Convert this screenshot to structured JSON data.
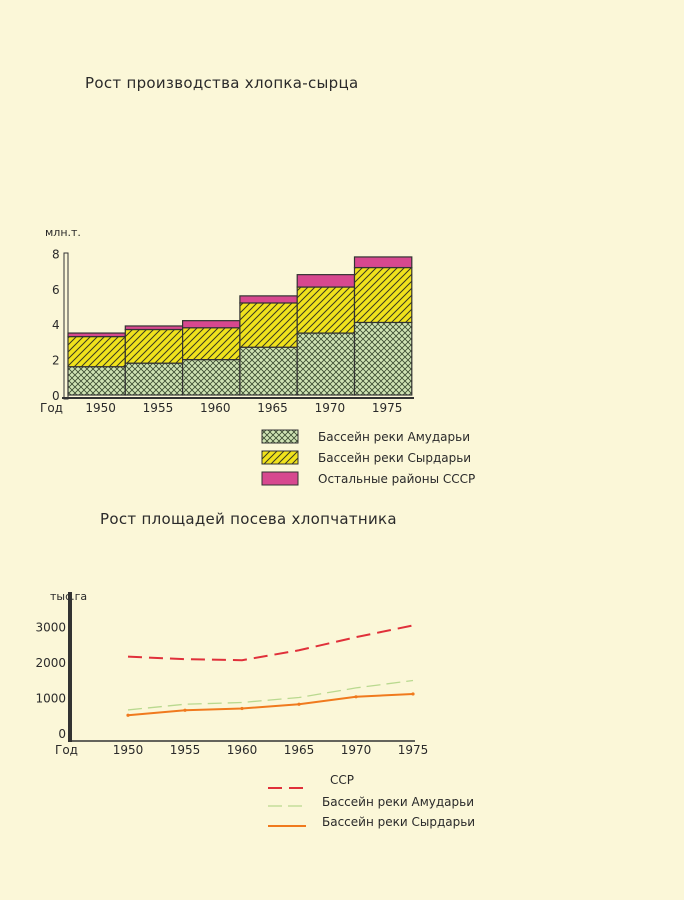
{
  "chart_data": [
    {
      "type": "bar",
      "stacked": true,
      "title": "Рост производства хлопка-сырца",
      "ylabel": "млн.т.",
      "xlabel": "Год",
      "ylim": [
        0,
        8
      ],
      "yticks": [
        0,
        2,
        4,
        6,
        8
      ],
      "categories": [
        "1950",
        "1955",
        "1960",
        "1965",
        "1970",
        "1975"
      ],
      "series": [
        {
          "name": "Бассейн реки Амударьи",
          "color": "#cfe3b4",
          "pattern": "crosshatch",
          "values": [
            1.6,
            1.8,
            2.0,
            2.7,
            3.5,
            4.1
          ]
        },
        {
          "name": "Бассейн реки Сырдарьи",
          "color": "#f0e21c",
          "pattern": "diagonal",
          "values": [
            1.7,
            1.9,
            1.8,
            2.5,
            2.6,
            3.1
          ]
        },
        {
          "name": "Остальные районы СССР",
          "color": "#d7488f",
          "pattern": "solid",
          "values": [
            0.2,
            0.2,
            0.4,
            0.4,
            0.7,
            0.6
          ]
        }
      ],
      "legend_position": "bottom-right"
    },
    {
      "type": "line",
      "title": "Рост площадей посева хлопчатника",
      "ylabel": "тыс.га",
      "xlabel": "Год",
      "ylim": [
        0,
        3000
      ],
      "yticks": [
        0,
        1000,
        2000,
        3000
      ],
      "x": [
        1950,
        1955,
        1960,
        1965,
        1970,
        1975
      ],
      "series": [
        {
          "name": "ССР",
          "color": "#e0303a",
          "style": "dashed",
          "values": [
            2150,
            2080,
            2050,
            2330,
            2700,
            3030
          ]
        },
        {
          "name": "Бассейн реки Амударьи",
          "color": "#b9d98f",
          "style": "dashed-thin",
          "values": [
            650,
            810,
            860,
            1000,
            1270,
            1480
          ]
        },
        {
          "name": "Бассейн реки Сырдарьи",
          "color": "#f07a1e",
          "style": "solid",
          "values": [
            500,
            640,
            690,
            810,
            1020,
            1100
          ]
        }
      ],
      "legend_position": "bottom"
    }
  ]
}
